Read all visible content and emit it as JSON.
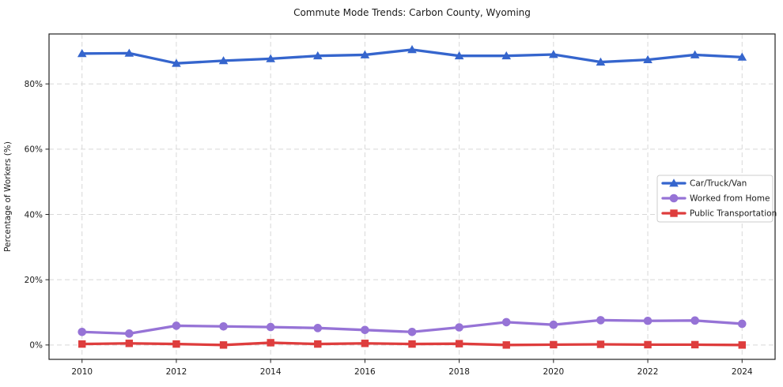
{
  "chart_data": {
    "type": "line",
    "title": "Commute Mode Trends: Carbon County, Wyoming",
    "xlabel": "",
    "ylabel": "Percentage of Workers (%)",
    "x": [
      2010,
      2011,
      2012,
      2013,
      2014,
      2015,
      2016,
      2017,
      2018,
      2019,
      2020,
      2021,
      2022,
      2023,
      2024
    ],
    "series": [
      {
        "name": "Car/Truck/Van",
        "color": "#3565cd",
        "marker": "triangle",
        "values": [
          89.3,
          89.4,
          86.3,
          87.1,
          87.7,
          88.6,
          88.9,
          90.5,
          88.6,
          88.6,
          89.0,
          86.7,
          87.4,
          88.9,
          88.2
        ]
      },
      {
        "name": "Worked from Home",
        "color": "#9673d6",
        "marker": "circle",
        "values": [
          4.0,
          3.5,
          5.9,
          5.7,
          5.5,
          5.2,
          4.6,
          4.0,
          5.4,
          7.0,
          6.2,
          7.6,
          7.4,
          7.5,
          6.5
        ]
      },
      {
        "name": "Public Transportation",
        "color": "#de3d3d",
        "marker": "square",
        "values": [
          0.3,
          0.5,
          0.3,
          0.0,
          0.7,
          0.3,
          0.5,
          0.3,
          0.4,
          0.0,
          0.1,
          0.2,
          0.1,
          0.1,
          0.0
        ]
      }
    ],
    "xlim": [
      2009.3,
      2024.7
    ],
    "ylim": [
      -4.4,
      95.3
    ],
    "x_ticks": {
      "values": [
        2010,
        2012,
        2014,
        2016,
        2018,
        2020,
        2022,
        2024
      ],
      "labels": [
        "2010",
        "2012",
        "2014",
        "2016",
        "2018",
        "2020",
        "2022",
        "2024"
      ]
    },
    "y_ticks": {
      "values": [
        0,
        20,
        40,
        60,
        80
      ],
      "labels": [
        "0%",
        "20%",
        "40%",
        "60%",
        "80%"
      ]
    },
    "grid": true,
    "legend_position": "center-right",
    "colors": {
      "grid": "#d8d8d8",
      "spine": "#222222",
      "text": "#1a1a1a",
      "legend_border": "#cccccc",
      "legend_bg": "#ffffff"
    }
  }
}
